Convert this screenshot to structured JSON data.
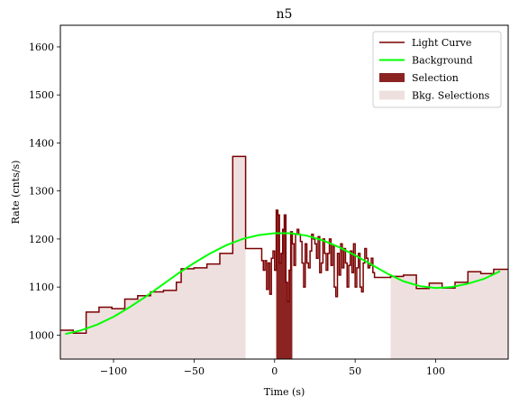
{
  "chart_data": {
    "type": "line",
    "title": "n5",
    "xlabel": "Time (s)",
    "ylabel": "Rate (cnts/s)",
    "xlim": [
      -133,
      145
    ],
    "ylim": [
      950,
      1645
    ],
    "xticks": [
      -100,
      -50,
      0,
      50,
      100
    ],
    "yticks": [
      1000,
      1100,
      1200,
      1300,
      1400,
      1500,
      1600
    ],
    "xtick_labels": [
      "−100",
      "−50",
      "0",
      "50",
      "100"
    ],
    "ytick_labels": [
      "1000",
      "1100",
      "1200",
      "1300",
      "1400",
      "1500",
      "1600"
    ],
    "grid": false,
    "legend_position": "top-right",
    "colors": {
      "light_curve": "#7a0000",
      "background": "#00ff00",
      "selection": "#8b2323",
      "bkg_selection": "#efe0e0"
    },
    "legend": [
      {
        "label": "Light Curve",
        "kind": "line",
        "color": "#7a0000"
      },
      {
        "label": "Background",
        "kind": "line",
        "color": "#00ff00"
      },
      {
        "label": "Selection",
        "kind": "patch",
        "color": "#8b2323"
      },
      {
        "label": "Bkg. Selections",
        "kind": "patch",
        "color": "#efe0e0"
      }
    ],
    "bkg_selection_ranges": [
      [
        -133,
        -18
      ],
      [
        72,
        145
      ]
    ],
    "selection_range": [
      1,
      11
    ],
    "series": [
      {
        "name": "Light Curve",
        "edges": [
          -133,
          -125,
          -117,
          -109,
          -101,
          -93,
          -85,
          -77,
          -69,
          -61,
          -58,
          -50,
          -42,
          -34,
          -26,
          -18,
          -8,
          -7,
          -6,
          -5,
          -4,
          -3,
          -2,
          -1,
          0,
          1,
          2,
          3,
          4,
          5,
          6,
          7,
          8,
          9,
          10,
          11,
          12,
          13,
          14,
          15,
          16,
          17,
          18,
          19,
          20,
          21,
          22,
          23,
          24,
          25,
          26,
          27,
          28,
          29,
          30,
          31,
          32,
          33,
          34,
          35,
          36,
          37,
          38,
          39,
          40,
          41,
          42,
          43,
          44,
          45,
          46,
          47,
          48,
          49,
          50,
          51,
          52,
          53,
          54,
          55,
          56,
          57,
          58,
          59,
          60,
          61,
          62,
          64,
          72,
          80,
          88,
          96,
          104,
          112,
          120,
          128,
          136,
          145
        ],
        "values": [
          1010,
          1004,
          1048,
          1058,
          1055,
          1075,
          1082,
          1090,
          1093,
          1110,
          1138,
          1140,
          1148,
          1170,
          1372,
          1180,
          1155,
          1135,
          1155,
          1095,
          1150,
          1085,
          1160,
          1175,
          1135,
          1260,
          1250,
          1150,
          1170,
          1220,
          1250,
          1110,
          1070,
          1135,
          1215,
          1190,
          1145,
          1210,
          1220,
          1210,
          1195,
          1150,
          1100,
          1190,
          1150,
          1140,
          1175,
          1210,
          1200,
          1190,
          1160,
          1205,
          1130,
          1150,
          1200,
          1170,
          1135,
          1170,
          1200,
          1145,
          1185,
          1100,
          1080,
          1170,
          1125,
          1190,
          1140,
          1180,
          1150,
          1100,
          1145,
          1175,
          1130,
          1190,
          1100,
          1140,
          1170,
          1100,
          1090,
          1150,
          1180,
          1160,
          1140,
          1145,
          1160,
          1130,
          1120,
          1120,
          1122,
          1125,
          1097,
          1108,
          1098,
          1110,
          1132,
          1128,
          1137
        ]
      },
      {
        "name": "Background",
        "x": [
          -130,
          -120,
          -110,
          -100,
          -90,
          -80,
          -70,
          -60,
          -50,
          -40,
          -30,
          -20,
          -10,
          0,
          10,
          20,
          30,
          40,
          50,
          60,
          70,
          80,
          90,
          100,
          110,
          120,
          130,
          140
        ],
        "values": [
          1002,
          1010,
          1022,
          1038,
          1058,
          1080,
          1104,
          1128,
          1150,
          1170,
          1187,
          1200,
          1208,
          1212,
          1212,
          1207,
          1197,
          1183,
          1166,
          1147,
          1128,
          1112,
          1102,
          1098,
          1100,
          1107,
          1117,
          1133
        ]
      }
    ]
  }
}
